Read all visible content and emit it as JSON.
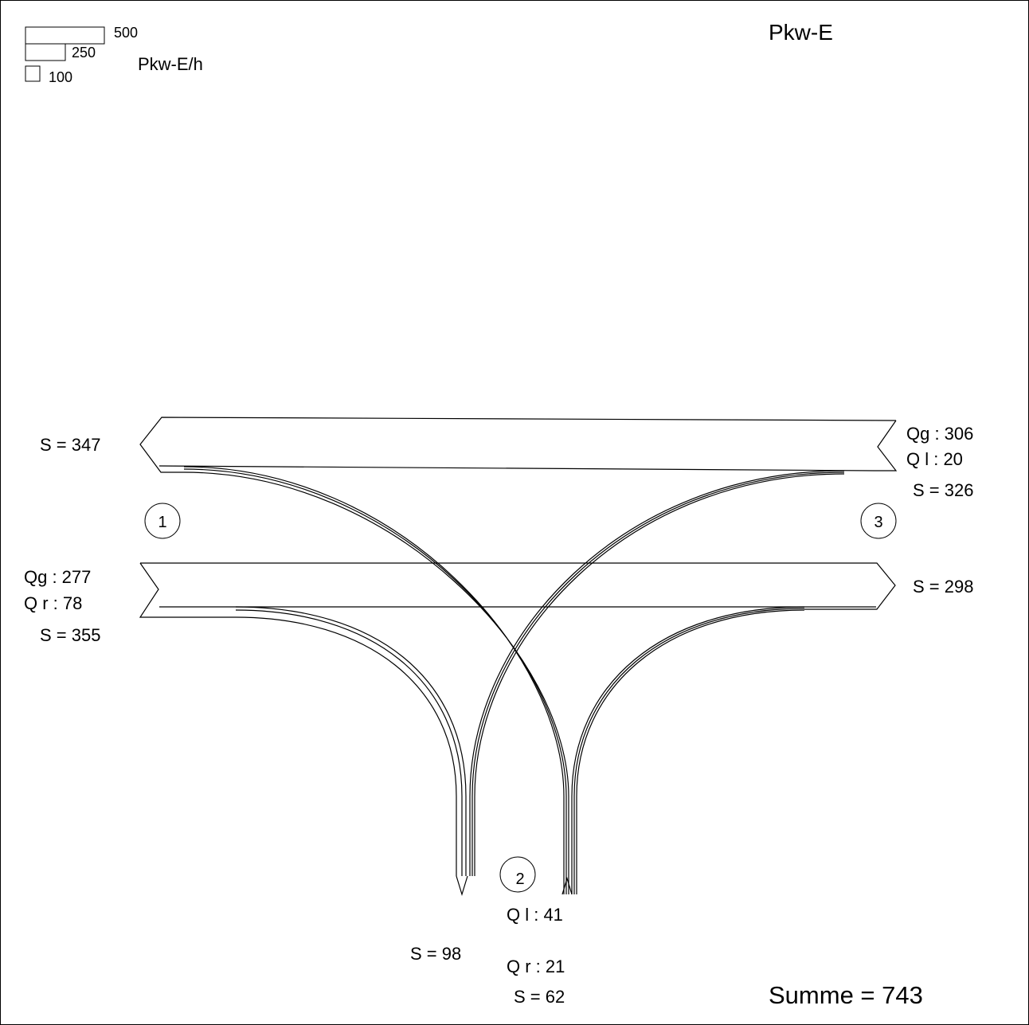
{
  "title": "Pkw-E",
  "legend": {
    "unit": "Pkw-E/h",
    "scale": [
      "500",
      "250",
      "100"
    ]
  },
  "nodes": [
    "1",
    "2",
    "3"
  ],
  "labels": {
    "left_top_sum": "S = 347",
    "right_top_qg": "Qg : 306",
    "right_top_ql": "Q l : 20",
    "right_top_sum": "S = 326",
    "left_bottom_qg": "Qg : 277",
    "left_bottom_qr": "Q r : 78",
    "left_bottom_sum": "S = 355",
    "right_bottom_sum": "S = 298",
    "bottom_left_sum": "S = 98",
    "bottom_ql": "Q l : 41",
    "bottom_qr": "Q r : 21",
    "bottom_sum": "S = 62"
  },
  "total": "Summe = 743",
  "flows": [
    {
      "from": "3",
      "to": "1",
      "kind": "geradeaus",
      "value": 306
    },
    {
      "from": "3",
      "to": "2",
      "kind": "links",
      "value": 20
    },
    {
      "from": "1",
      "to": "3",
      "kind": "geradeaus",
      "value": 277
    },
    {
      "from": "1",
      "to": "2",
      "kind": "rechts",
      "value": 78
    },
    {
      "from": "2",
      "to": "1",
      "kind": "links",
      "value": 41
    },
    {
      "from": "2",
      "to": "3",
      "kind": "rechts",
      "value": 21
    }
  ]
}
